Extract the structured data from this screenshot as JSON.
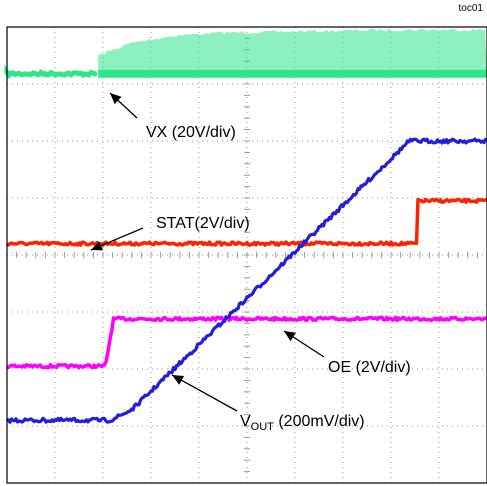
{
  "figure_tag": "toc01",
  "chart_data": {
    "type": "line",
    "title": "",
    "xlabel": "",
    "ylabel": "",
    "grid": true,
    "x_divisions": 10,
    "y_divisions": 8,
    "x_range": [
      0,
      10
    ],
    "y_range": [
      0,
      8
    ],
    "series": [
      {
        "name": "VX",
        "label": "VX (20V/div)",
        "color": "#2ee58a",
        "switching_start_div": 1.9,
        "baseline_div": 7.18,
        "envelope": {
          "x": [
            1.9,
            2.6,
            3.5,
            4.5,
            6,
            8,
            10
          ],
          "y": [
            7.5,
            7.72,
            7.85,
            7.9,
            7.92,
            7.95,
            7.95
          ]
        }
      },
      {
        "name": "STAT",
        "label": "STAT(2V/div)",
        "color": "#ff2200",
        "x": [
          0,
          8.55,
          8.56,
          10
        ],
        "y": [
          4.2,
          4.2,
          4.95,
          4.95
        ]
      },
      {
        "name": "OE",
        "label": "OE (2V/div)",
        "color": "#ff00ff",
        "x": [
          0,
          2.05,
          2.22,
          10
        ],
        "y": [
          2.05,
          2.05,
          2.88,
          2.88
        ]
      },
      {
        "name": "VOUT",
        "label_main": "V",
        "label_sub": "OUT",
        "label_scale": " (200mV/div)",
        "color": "#1f1fdd",
        "x": [
          0,
          2.15,
          2.45,
          2.62,
          8.38,
          10
        ],
        "y": [
          1.1,
          1.1,
          1.22,
          1.3,
          6.0,
          6.0
        ]
      }
    ]
  }
}
